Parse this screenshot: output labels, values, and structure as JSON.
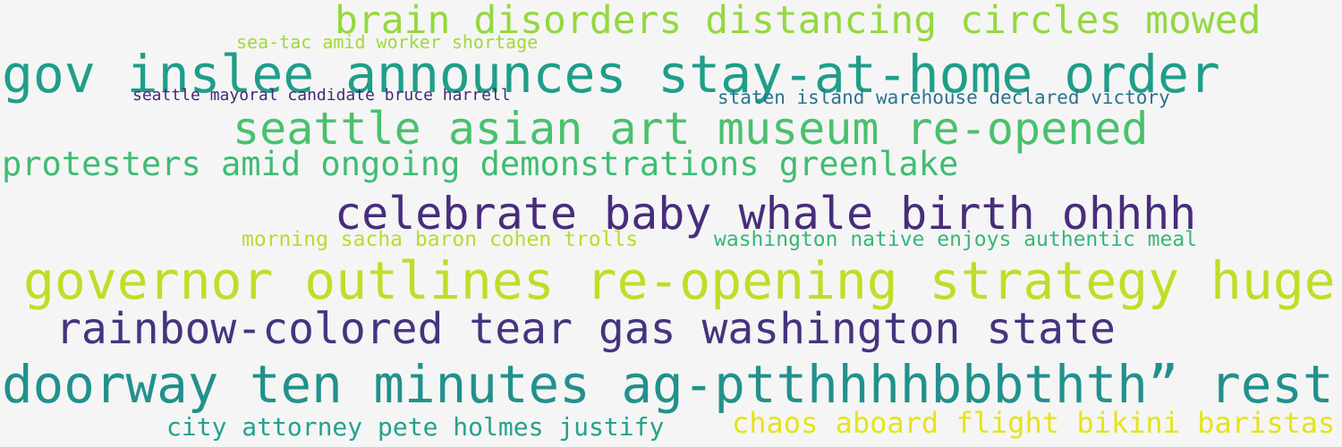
{
  "colors": {
    "background": "#f5f5f5"
  },
  "phrases": [
    {
      "text": "brain disorders distancing circles mowed",
      "color": "#95d840"
    },
    {
      "text": "sea-tac amid worker shortage",
      "color": "#a0da39"
    },
    {
      "text": "gov inslee announces stay-at-home order",
      "color": "#1f9e89"
    },
    {
      "text": "seattle mayoral candidate bruce harrell",
      "color": "#482878"
    },
    {
      "text": "staten island warehouse declared victory",
      "color": "#2c728e"
    },
    {
      "text": "seattle asian art museum re-opened",
      "color": "#4ac16d"
    },
    {
      "text": "protesters amid ongoing demonstrations greenlake",
      "color": "#3fbc73"
    },
    {
      "text": "celebrate baby whale birth ohhhh",
      "color": "#472d7b"
    },
    {
      "text": "morning sacha baron cohen trolls",
      "color": "#b5de2b"
    },
    {
      "text": "washington native enjoys authentic meal",
      "color": "#35b779"
    },
    {
      "text": "governor outlines re-opening strategy huge",
      "color": "#bddf26"
    },
    {
      "text": "rainbow-colored tear gas washington state",
      "color": "#46337e"
    },
    {
      "text": "doorway ten minutes ag-ptthhhhbbbthth” rest",
      "color": "#21918c"
    },
    {
      "text": "city attorney pete holmes justify",
      "color": "#25a18e"
    },
    {
      "text": "chaos aboard flight bikini baristas",
      "color": "#e5e419"
    }
  ]
}
